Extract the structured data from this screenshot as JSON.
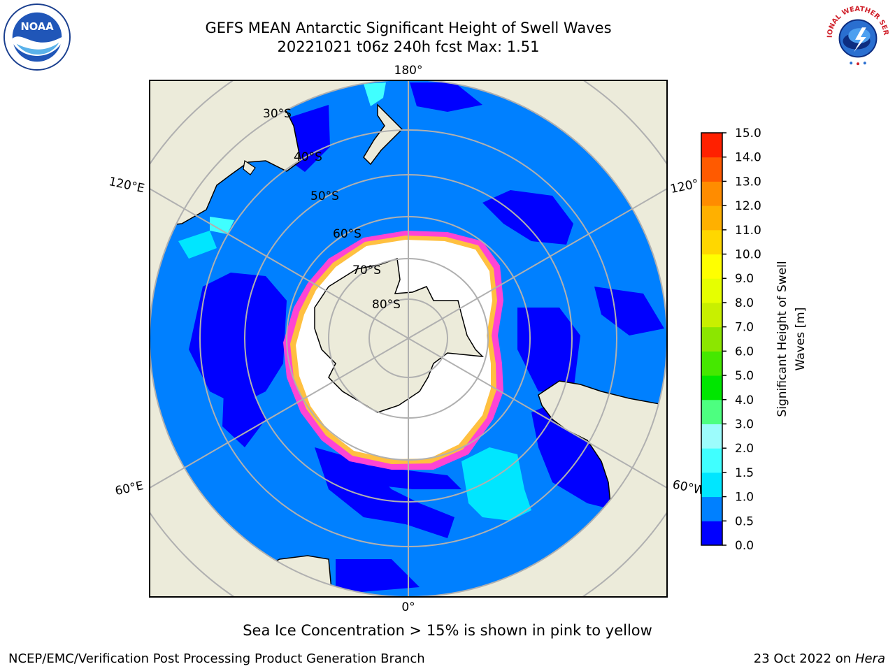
{
  "header": {
    "title_line1": "GEFS MEAN Antarctic Significant Height of Swell Waves",
    "title_line2": "20221021 t06z 240h fcst   Max: 1.51"
  },
  "logos": {
    "left": {
      "icon": "noaa-logo",
      "text": "NOAA"
    },
    "right": {
      "icon": "nws-logo",
      "text": "NATIONAL WEATHER SERVICE"
    }
  },
  "map": {
    "projection": "south polar stereographic",
    "meridian_labels": {
      "top": "180°",
      "bottom": "0°",
      "left_upper": "120°E",
      "left_lower": "60°E",
      "right_upper": "120°",
      "right_lower": "60°W"
    },
    "latitude_labels": [
      "30°S",
      "40°S",
      "50°S",
      "60°S",
      "70°S",
      "80°S"
    ],
    "colors": {
      "land": "#ecebda",
      "sea_ice": "#ffffff",
      "ice_edge": "#ff44d4",
      "grid": "#b0b0b0"
    }
  },
  "colorbar": {
    "label": "Significant Height of Swell Waves [m]",
    "ticks": [
      "0.0",
      "0.5",
      "1.0",
      "1.5",
      "2.0",
      "3.0",
      "4.0",
      "5.0",
      "6.0",
      "7.0",
      "8.0",
      "9.0",
      "10.0",
      "11.0",
      "12.0",
      "13.0",
      "14.0",
      "15.0"
    ],
    "colors": [
      "#0000ff",
      "#0080ff",
      "#00e6ff",
      "#40ffff",
      "#9cfcfc",
      "#4dff80",
      "#00e600",
      "#45e800",
      "#8ce600",
      "#c8f000",
      "#e6ff00",
      "#ffff00",
      "#ffd700",
      "#ffb000",
      "#ff8c00",
      "#ff5a00",
      "#ff2000"
    ]
  },
  "note": "Sea Ice Concentration > 15% is shown in pink to yellow",
  "footer": {
    "left": "NCEP/EMC/Verification Post Processing Product Generation Branch",
    "right_prefix": "23 Oct 2022 on",
    "right_host": "Hera"
  }
}
